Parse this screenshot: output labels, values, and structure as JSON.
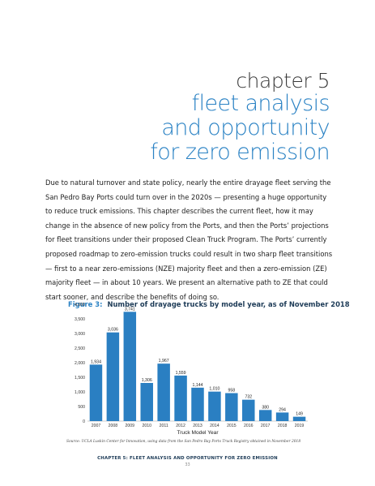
{
  "chapter": {
    "label": "chapter 5",
    "title_lines": [
      "fleet analysis",
      "and opportunity",
      "for zero emission"
    ]
  },
  "intro": "Due to natural turnover and state policy, nearly the entire drayage fleet serving the San Pedro Bay Ports could turn over in the 2020s — presenting a huge opportunity to reduce truck emissions. This chapter describes the current fleet, how it may change in the absence of new policy from the Ports, and then the Ports’ projections for fleet transitions under their proposed Clean Truck Program. The Ports’ currently proposed roadmap to zero-emission trucks could result in two sharp fleet transitions — first to a near zero-emissions (NZE) majority fleet and then a zero-emission (ZE) majority fleet — in about 10 years. We present an alternative path to ZE that could start sooner, and describe the benefits of doing so.",
  "figure": {
    "label": "Figure 3:",
    "title": "Number of drayage trucks by model year, as of November 2018"
  },
  "chart_data": {
    "type": "bar",
    "categories": [
      "2007",
      "2008",
      "2009",
      "2010",
      "2011",
      "2012",
      "2013",
      "2014",
      "2015",
      "2016",
      "2017",
      "2018",
      "2019"
    ],
    "values": [
      1934,
      3036,
      3741,
      1306,
      1967,
      1559,
      1144,
      1010,
      958,
      732,
      380,
      294,
      149
    ],
    "value_labels": [
      "1,934",
      "3,036",
      "3,741",
      "1,306",
      "1,967",
      "1,559",
      "1,144",
      "1,010",
      "958",
      "732",
      "380",
      "294",
      "149"
    ],
    "yticks": [
      "0",
      "500",
      "1,000",
      "1,500",
      "2,000",
      "2,500",
      "3,000",
      "3,500",
      "4,000"
    ],
    "ylim": [
      0,
      4000
    ],
    "xlabel": "Truck Model Year",
    "ylabel": "",
    "title": "",
    "grid": false,
    "bar_color": "#2a7fc2"
  },
  "source": "Source: UCLA Luskin Center for Innovation, using data from the San Pedro Bay Ports Truck Registry obtained in November 2018",
  "footer": {
    "title": "CHAPTER 5: FLEET ANALYSIS AND OPPORTUNITY FOR ZERO EMISSION",
    "page": "33"
  }
}
